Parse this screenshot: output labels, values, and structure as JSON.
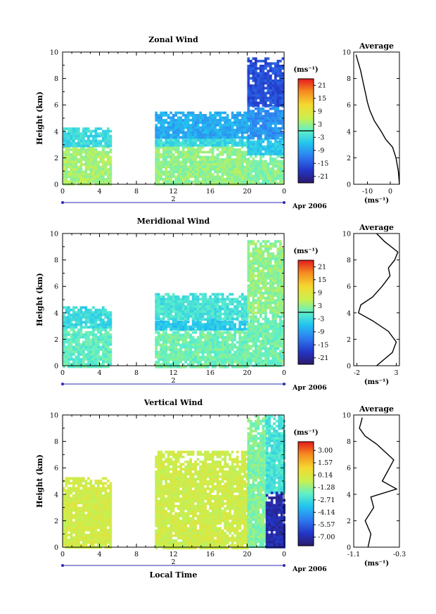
{
  "chart_data": [
    {
      "type": "heatmap",
      "title": "Zonal Wind",
      "ylabel": "Height (km)",
      "xlabel": "",
      "xlim": [
        0,
        24
      ],
      "ylim": [
        0,
        10
      ],
      "x_ticks": [
        "0",
        "4",
        "8",
        "12",
        "16",
        "20",
        "0"
      ],
      "y_ticks": [
        "0",
        "2",
        "4",
        "6",
        "8",
        "10"
      ],
      "date_label": "Apr 2006",
      "day_label": "2",
      "colorbar": {
        "unit": "(ms⁻¹)",
        "labels": [
          "21",
          "15",
          "9",
          "3",
          "-3",
          "-9",
          "-15",
          "-21"
        ],
        "range": [
          -24,
          24
        ],
        "zero_line": 0
      },
      "regions": [
        {
          "x": [
            0,
            5.2
          ],
          "y": [
            0,
            2.9
          ],
          "value": 4
        },
        {
          "x": [
            0,
            5.2
          ],
          "y": [
            2.9,
            4.3
          ],
          "value": -3
        },
        {
          "x": [
            10,
            20
          ],
          "y": [
            0,
            2.9
          ],
          "value": 3
        },
        {
          "x": [
            10,
            20
          ],
          "y": [
            2.9,
            3.6
          ],
          "value": -3
        },
        {
          "x": [
            10,
            20
          ],
          "y": [
            3.6,
            5.5
          ],
          "value": -8
        },
        {
          "x": [
            20,
            24
          ],
          "y": [
            0,
            2.2
          ],
          "value": 2
        },
        {
          "x": [
            20,
            24
          ],
          "y": [
            2.2,
            3.5
          ],
          "value": -5
        },
        {
          "x": [
            20,
            24
          ],
          "y": [
            3.5,
            6
          ],
          "value": -10
        },
        {
          "x": [
            20,
            24
          ],
          "y": [
            6,
            9.6
          ],
          "value": -16
        }
      ],
      "average": {
        "title": "Average",
        "xlabel": "(ms⁻¹)",
        "xlim": [
          -16,
          4
        ],
        "x_ticks": [
          "-10",
          "0"
        ],
        "profile_x": [
          4,
          3.5,
          2.5,
          1,
          -2,
          -4,
          -7,
          -9,
          -10,
          -11,
          -12,
          -13,
          -14,
          -15
        ],
        "profile_y": [
          0,
          1,
          2,
          2.8,
          3.4,
          4,
          4.8,
          5.6,
          6.2,
          7,
          7.8,
          8.6,
          9.2,
          9.8
        ]
      }
    },
    {
      "type": "heatmap",
      "title": "Meridional Wind",
      "ylabel": "Height (km)",
      "xlabel": "",
      "xlim": [
        0,
        24
      ],
      "ylim": [
        0,
        10
      ],
      "x_ticks": [
        "0",
        "4",
        "8",
        "12",
        "16",
        "20",
        "0"
      ],
      "y_ticks": [
        "0",
        "2",
        "4",
        "6",
        "8",
        "10"
      ],
      "date_label": "Apr 2006",
      "day_label": "2",
      "colorbar": {
        "unit": "(ms⁻¹)",
        "labels": [
          "21",
          "15",
          "9",
          "3",
          "-3",
          "-9",
          "-15",
          "-21"
        ],
        "range": [
          -24,
          24
        ],
        "zero_line": 0
      },
      "regions": [
        {
          "x": [
            0,
            5.2
          ],
          "y": [
            0,
            3.0
          ],
          "value": 0
        },
        {
          "x": [
            0,
            5.2
          ],
          "y": [
            3.0,
            4.5
          ],
          "value": -3
        },
        {
          "x": [
            10,
            20
          ],
          "y": [
            0,
            2.8
          ],
          "value": 1
        },
        {
          "x": [
            10,
            20
          ],
          "y": [
            2.8,
            3.6
          ],
          "value": -5
        },
        {
          "x": [
            10,
            20
          ],
          "y": [
            3.6,
            5.5
          ],
          "value": -2
        },
        {
          "x": [
            20,
            24
          ],
          "y": [
            0,
            4
          ],
          "value": 1
        },
        {
          "x": [
            20,
            24
          ],
          "y": [
            4,
            9.5
          ],
          "value": 3
        }
      ],
      "average": {
        "title": "Average",
        "xlabel": "(ms⁻¹)",
        "xlim": [
          -2.4,
          3.4
        ],
        "x_ticks": [
          "-2",
          "3"
        ],
        "profile_x": [
          0.5,
          2.5,
          3,
          2,
          0,
          -1.8,
          -1.5,
          0,
          1.2,
          2.2,
          2.0,
          2.8,
          3.2,
          1.5,
          0.5
        ],
        "profile_y": [
          0,
          1,
          1.8,
          2.6,
          3.4,
          4.0,
          4.6,
          5.2,
          6.0,
          6.8,
          7.4,
          8.0,
          8.6,
          9.4,
          10
        ]
      }
    },
    {
      "type": "heatmap",
      "title": "Vertical Wind",
      "ylabel": "Height (km)",
      "xlabel": "Local Time",
      "xlim": [
        0,
        24
      ],
      "ylim": [
        0,
        10
      ],
      "x_ticks": [
        "0",
        "4",
        "8",
        "12",
        "16",
        "20",
        "0"
      ],
      "y_ticks": [
        "0",
        "2",
        "4",
        "6",
        "8",
        "10"
      ],
      "date_label": "Apr 2006",
      "day_label": "2",
      "colorbar": {
        "unit": "(ms⁻¹)",
        "labels": [
          "3.00",
          "1.57",
          "0.14",
          "-1.28",
          "-2.71",
          "-4.14",
          "-5.57",
          "-7.00"
        ],
        "range": [
          -8,
          4
        ]
      },
      "regions": [
        {
          "x": [
            0,
            5.2
          ],
          "y": [
            0,
            5.3
          ],
          "value": -0.2
        },
        {
          "x": [
            10,
            20
          ],
          "y": [
            0,
            7.3
          ],
          "value": -0.3
        },
        {
          "x": [
            20,
            22
          ],
          "y": [
            0,
            10
          ],
          "value": -1.5
        },
        {
          "x": [
            22,
            24
          ],
          "y": [
            4.2,
            10
          ],
          "value": -2.5
        },
        {
          "x": [
            22,
            24
          ],
          "y": [
            0,
            4.2
          ],
          "value": -7
        }
      ],
      "average": {
        "title": "Average",
        "xlabel": "(ms⁻¹)",
        "xlim": [
          -1.1,
          -0.3
        ],
        "x_ticks": [
          "-1.1",
          "-0.3"
        ],
        "profile_x": [
          -0.85,
          -0.8,
          -0.9,
          -0.75,
          -0.8,
          -0.35,
          -0.6,
          -0.5,
          -0.4,
          -0.55,
          -0.7,
          -0.9,
          -1.0,
          -0.95
        ],
        "profile_y": [
          0,
          1,
          2,
          3,
          3.8,
          4.4,
          5.0,
          5.8,
          6.6,
          7.2,
          7.8,
          8.4,
          9.0,
          9.8
        ]
      }
    }
  ]
}
